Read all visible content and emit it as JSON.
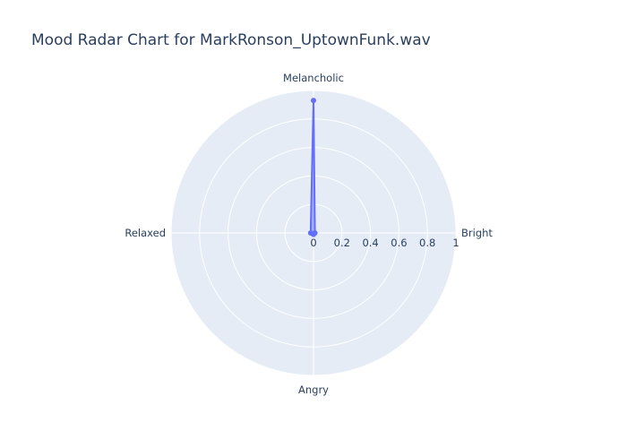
{
  "chart_data": {
    "type": "radar",
    "title": "Mood Radar Chart for MarkRonson_UptownFunk.wav",
    "categories": [
      "Bright",
      "Melancholic",
      "Relaxed",
      "Angry"
    ],
    "series": [
      {
        "values": [
          0.01,
          0.93,
          0.02,
          0.01
        ],
        "closed": true
      }
    ],
    "radial_range": [
      0,
      1
    ],
    "radial_ticks": [
      "0",
      "0.2",
      "0.4",
      "0.6",
      "0.8",
      "1"
    ],
    "grid": true,
    "legend": "none",
    "colors": {
      "line": "#636efa",
      "fill": "rgba(99,110,250,0.5)",
      "polar_bg": "#e5ecf6",
      "grid": "#ffffff",
      "text": "#2a3f5f"
    }
  }
}
